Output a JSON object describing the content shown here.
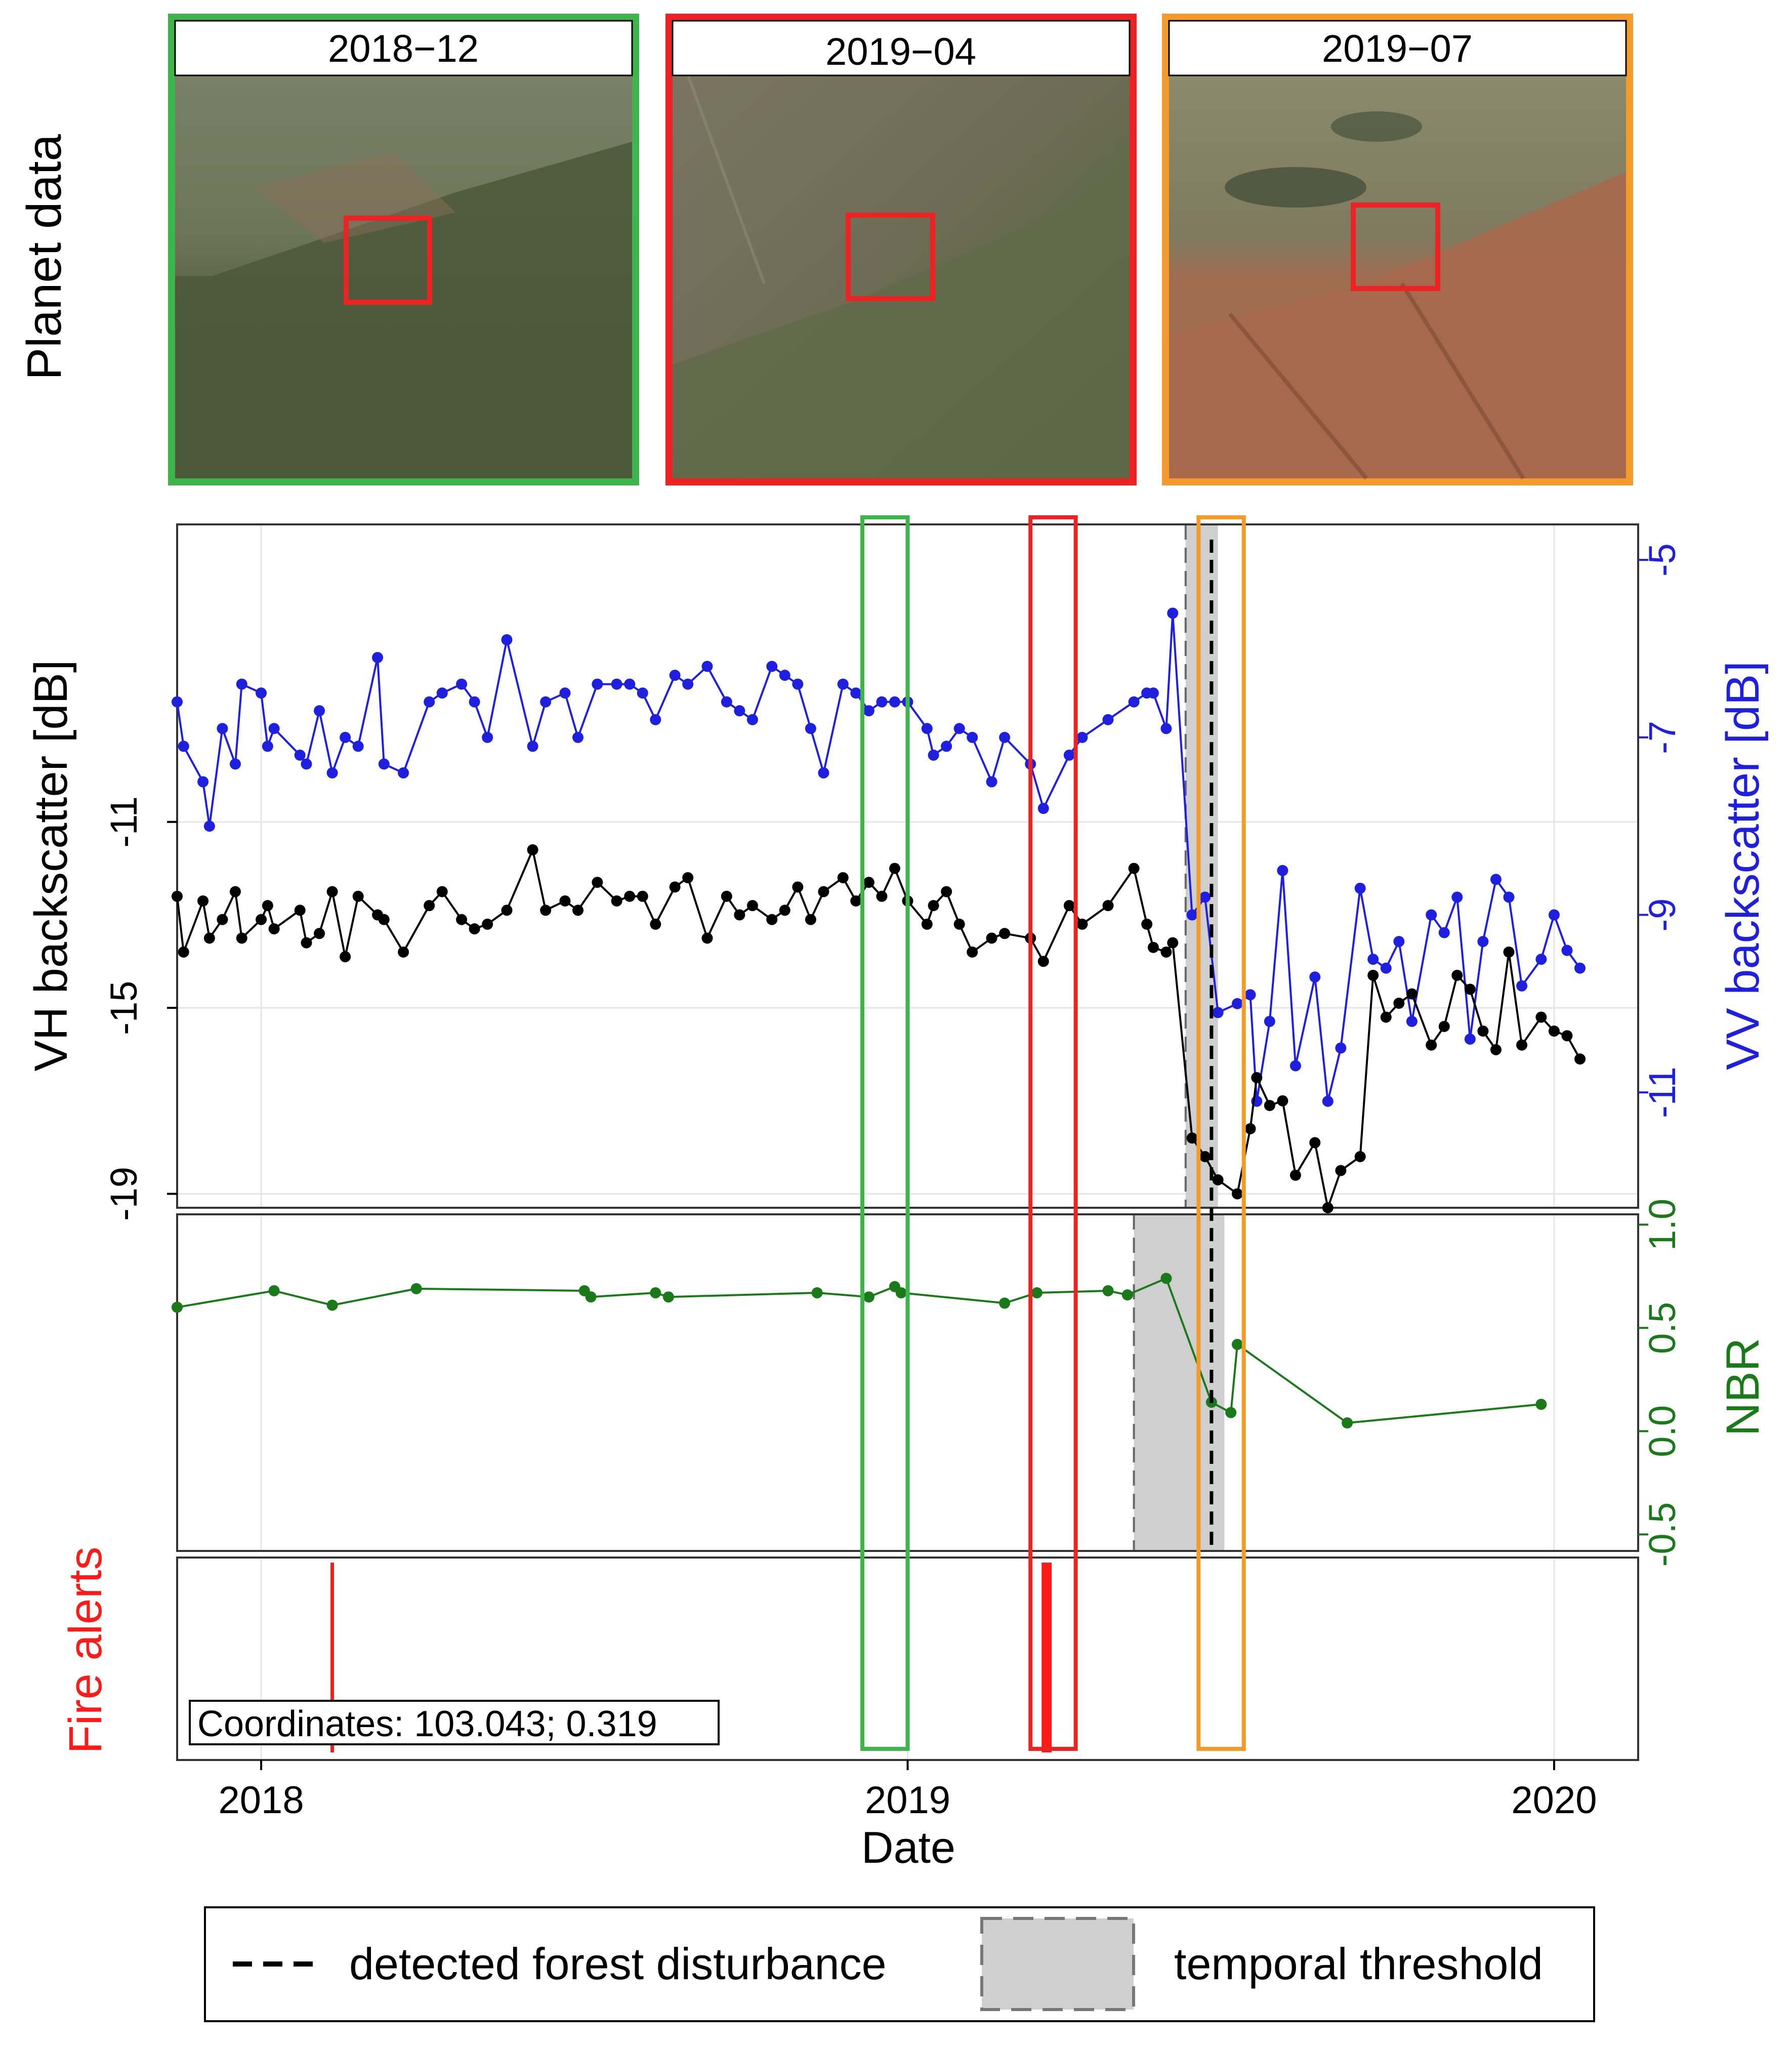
{
  "colors": {
    "vh": "#000000",
    "vv": "#1f1fe0",
    "nbr": "#1a7a1a",
    "fire": "#ff1a1a",
    "green_box": "#3db54a",
    "red_box": "#ee2222",
    "orange_box": "#f39a2b",
    "threshold_fill": "#cfcfcf",
    "grid": "#e6e6e6"
  },
  "planet": {
    "side_label": "Planet data",
    "panels": [
      {
        "date_label": "2018−12",
        "frame": "green"
      },
      {
        "date_label": "2019−04",
        "frame": "red"
      },
      {
        "date_label": "2019−07",
        "frame": "orange"
      }
    ]
  },
  "chart_data": [
    {
      "type": "line",
      "panel": "backscatter",
      "x_range": [
        2017.87,
        2020.13
      ],
      "ylabel_left": "VH backscatter [dB]",
      "ylabel_right": "VV backscatter [dB]",
      "yticks_left": [
        "-11",
        "-15",
        "-19"
      ],
      "yticks_right": [
        "-5",
        "-7",
        "-9",
        "-11"
      ],
      "left_tick_values": [
        -11,
        -15,
        -19
      ],
      "right_tick_values": [
        -5,
        -7,
        -9,
        -11
      ],
      "left_ylim": [
        -19.3,
        -4.6
      ],
      "right_ylim": [
        -12.3,
        -4.6
      ],
      "series": [
        {
          "name": "VV",
          "axis": "right",
          "x": [
            2017.87,
            2017.88,
            2017.91,
            2017.92,
            2017.94,
            2017.96,
            2017.97,
            2018.0,
            2018.01,
            2018.02,
            2018.06,
            2018.07,
            2018.09,
            2018.11,
            2018.13,
            2018.15,
            2018.18,
            2018.19,
            2018.22,
            2018.26,
            2018.28,
            2018.31,
            2018.33,
            2018.35,
            2018.38,
            2018.42,
            2018.44,
            2018.47,
            2018.49,
            2018.52,
            2018.55,
            2018.57,
            2018.59,
            2018.61,
            2018.64,
            2018.66,
            2018.69,
            2018.72,
            2018.74,
            2018.76,
            2018.79,
            2018.81,
            2018.83,
            2018.85,
            2018.87,
            2018.9,
            2018.92,
            2018.94,
            2018.96,
            2018.98,
            2019.0,
            2019.03,
            2019.04,
            2019.06,
            2019.08,
            2019.1,
            2019.13,
            2019.15,
            2019.19,
            2019.21,
            2019.25,
            2019.27,
            2019.31,
            2019.35,
            2019.37,
            2019.38,
            2019.4,
            2019.41,
            2019.44,
            2019.46,
            2019.48,
            2019.51,
            2019.53,
            2019.54,
            2019.56,
            2019.58,
            2019.6,
            2019.63,
            2019.65,
            2019.67,
            2019.7,
            2019.72,
            2019.74,
            2019.76,
            2019.78,
            2019.81,
            2019.83,
            2019.85,
            2019.87,
            2019.89,
            2019.91,
            2019.93,
            2019.95,
            2019.98,
            2020.0,
            2020.02,
            2020.04
          ],
          "y": [
            -6.6,
            -7.1,
            -7.5,
            -8.0,
            -6.9,
            -7.3,
            -6.4,
            -6.5,
            -7.1,
            -6.9,
            -7.2,
            -7.3,
            -6.7,
            -7.4,
            -7.0,
            -7.1,
            -6.1,
            -7.3,
            -7.4,
            -6.6,
            -6.5,
            -6.4,
            -6.6,
            -7.0,
            -5.9,
            -7.1,
            -6.6,
            -6.5,
            -7.0,
            -6.4,
            -6.4,
            -6.4,
            -6.5,
            -6.8,
            -6.3,
            -6.4,
            -6.2,
            -6.6,
            -6.7,
            -6.8,
            -6.2,
            -6.3,
            -6.4,
            -6.9,
            -7.4,
            -6.4,
            -6.5,
            -6.7,
            -6.6,
            -6.6,
            -6.6,
            -6.9,
            -7.2,
            -7.1,
            -6.9,
            -7.0,
            -7.5,
            -7.0,
            -7.3,
            -7.8,
            -7.2,
            -7.0,
            -6.8,
            -6.6,
            -6.5,
            -6.5,
            -6.9,
            -5.6,
            -9.0,
            -8.8,
            -10.1,
            -10.0,
            -9.9,
            -11.1,
            -10.2,
            -8.5,
            -10.7,
            -9.7,
            -11.1,
            -10.5,
            -8.7,
            -9.5,
            -9.6,
            -9.3,
            -10.2,
            -9.0,
            -9.2,
            -8.8,
            -10.4,
            -9.3,
            -8.6,
            -8.8,
            -9.8,
            -9.5,
            -9.0,
            -9.4,
            -9.6
          ]
        },
        {
          "name": "VH",
          "axis": "left",
          "x": [
            2017.87,
            2017.88,
            2017.91,
            2017.92,
            2017.94,
            2017.96,
            2017.97,
            2018.0,
            2018.01,
            2018.02,
            2018.06,
            2018.07,
            2018.09,
            2018.11,
            2018.13,
            2018.15,
            2018.18,
            2018.19,
            2018.22,
            2018.26,
            2018.28,
            2018.31,
            2018.33,
            2018.35,
            2018.38,
            2018.42,
            2018.44,
            2018.47,
            2018.49,
            2018.52,
            2018.55,
            2018.57,
            2018.59,
            2018.61,
            2018.64,
            2018.66,
            2018.69,
            2018.72,
            2018.74,
            2018.76,
            2018.79,
            2018.81,
            2018.83,
            2018.85,
            2018.87,
            2018.9,
            2018.92,
            2018.94,
            2018.96,
            2018.98,
            2019.0,
            2019.03,
            2019.04,
            2019.06,
            2019.08,
            2019.1,
            2019.13,
            2019.15,
            2019.19,
            2019.21,
            2019.25,
            2019.27,
            2019.31,
            2019.35,
            2019.37,
            2019.38,
            2019.4,
            2019.41,
            2019.44,
            2019.46,
            2019.48,
            2019.51,
            2019.53,
            2019.54,
            2019.56,
            2019.58,
            2019.6,
            2019.63,
            2019.65,
            2019.67,
            2019.7,
            2019.72,
            2019.74,
            2019.76,
            2019.78,
            2019.81,
            2019.83,
            2019.85,
            2019.87,
            2019.89,
            2019.91,
            2019.93,
            2019.95,
            2019.98,
            2020.0,
            2020.02,
            2020.04
          ],
          "y": [
            -12.6,
            -13.8,
            -12.7,
            -13.5,
            -13.1,
            -12.5,
            -13.5,
            -13.1,
            -12.8,
            -13.3,
            -12.9,
            -13.6,
            -13.4,
            -12.5,
            -13.9,
            -12.6,
            -13.0,
            -13.1,
            -13.8,
            -12.8,
            -12.5,
            -13.1,
            -13.3,
            -13.2,
            -12.9,
            -11.6,
            -12.9,
            -12.7,
            -12.9,
            -12.3,
            -12.7,
            -12.6,
            -12.6,
            -13.2,
            -12.4,
            -12.2,
            -13.5,
            -12.6,
            -13.0,
            -12.8,
            -13.1,
            -12.9,
            -12.4,
            -13.1,
            -12.5,
            -12.2,
            -12.7,
            -12.3,
            -12.6,
            -12.0,
            -12.7,
            -13.2,
            -12.8,
            -12.5,
            -13.2,
            -13.8,
            -13.5,
            -13.4,
            -13.5,
            -14.0,
            -12.8,
            -13.2,
            -12.8,
            -12.0,
            -13.2,
            -13.7,
            -13.8,
            -13.6,
            -17.8,
            -18.2,
            -18.7,
            -19.0,
            -17.6,
            -16.5,
            -17.1,
            -17.0,
            -18.6,
            -17.9,
            -19.3,
            -18.5,
            -18.2,
            -14.3,
            -15.2,
            -14.9,
            -14.7,
            -15.8,
            -15.4,
            -14.3,
            -14.6,
            -15.5,
            -15.9,
            -13.8,
            -15.8,
            -15.2,
            -15.5,
            -15.6,
            -16.1
          ]
        }
      ]
    },
    {
      "type": "line",
      "panel": "nbr",
      "x_range": [
        2017.87,
        2020.13
      ],
      "ylabel_right": "NBR",
      "yticks_right": [
        "1.0",
        "0.5",
        "0.0",
        "-0.5"
      ],
      "right_tick_values": [
        1.0,
        0.5,
        0.0,
        -0.5
      ],
      "ylim": [
        -0.58,
        1.05
      ],
      "series": [
        {
          "name": "NBR",
          "x": [
            2017.87,
            2018.02,
            2018.11,
            2018.24,
            2018.5,
            2018.51,
            2018.61,
            2018.63,
            2018.86,
            2018.94,
            2018.98,
            2018.99,
            2019.15,
            2019.2,
            2019.31,
            2019.34,
            2019.4,
            2019.47,
            2019.5,
            2019.51,
            2019.68,
            2019.98
          ],
          "y": [
            0.6,
            0.68,
            0.61,
            0.69,
            0.68,
            0.65,
            0.67,
            0.65,
            0.67,
            0.65,
            0.7,
            0.67,
            0.62,
            0.67,
            0.68,
            0.66,
            0.74,
            0.14,
            0.09,
            0.42,
            0.04,
            0.13
          ]
        }
      ]
    },
    {
      "type": "bar",
      "panel": "fire_alerts",
      "ylabel_left": "Fire alerts",
      "alerts_x": [
        2018.11,
        2019.21,
        2019.215,
        2019.22
      ],
      "annotation": "Coordinates: 103.043; 0.319"
    }
  ],
  "x_axis": {
    "label": "Date",
    "ticks": [
      "2018",
      "2019",
      "2020"
    ],
    "tick_values": [
      2018.0,
      2019.0,
      2020.0
    ]
  },
  "markers": {
    "detected_disturbance_x": 2019.47,
    "threshold_backscatter": [
      2019.43,
      2019.48
    ],
    "threshold_nbr": [
      2019.35,
      2019.49
    ],
    "green_window": [
      2018.93,
      2019.0
    ],
    "red_window": [
      2019.19,
      2019.26
    ],
    "orange_window": [
      2019.45,
      2019.52
    ]
  },
  "legend": {
    "disturbance_label": "detected forest disturbance",
    "threshold_label": "temporal threshold"
  }
}
